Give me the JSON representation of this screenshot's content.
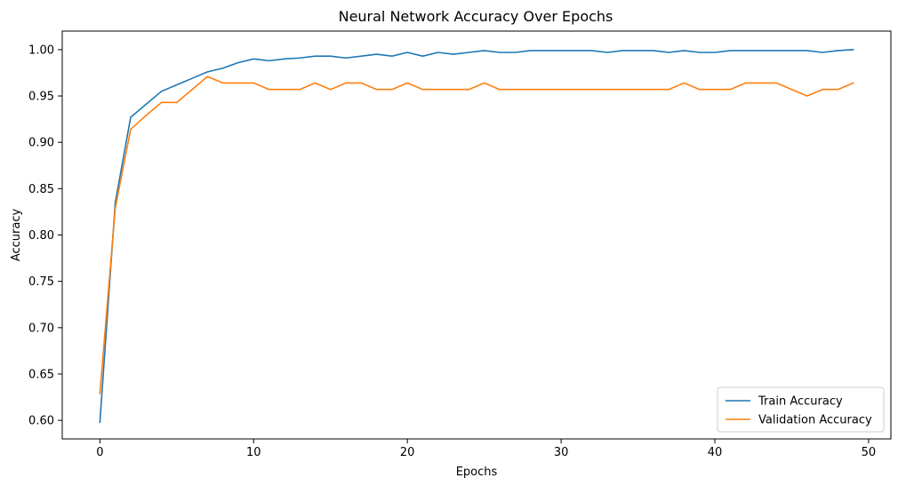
{
  "chart_data": {
    "type": "line",
    "title": "Neural Network Accuracy Over Epochs",
    "xlabel": "Epochs",
    "ylabel": "Accuracy",
    "xlim": [
      -2.45,
      51.45
    ],
    "ylim": [
      0.58,
      1.02
    ],
    "xticks": [
      0,
      10,
      20,
      30,
      40,
      50
    ],
    "yticks": [
      0.6,
      0.65,
      0.7,
      0.75,
      0.8,
      0.85,
      0.9,
      0.95,
      1.0
    ],
    "ytick_labels": [
      "0.60",
      "0.65",
      "0.70",
      "0.75",
      "0.80",
      "0.85",
      "0.90",
      "0.95",
      "1.00"
    ],
    "xtick_labels": [
      "0",
      "10",
      "20",
      "30",
      "40",
      "50"
    ],
    "grid": false,
    "legend_position": "lower-right",
    "x": [
      0,
      1,
      2,
      3,
      4,
      5,
      6,
      7,
      8,
      9,
      10,
      11,
      12,
      13,
      14,
      15,
      16,
      17,
      18,
      19,
      20,
      21,
      22,
      23,
      24,
      25,
      26,
      27,
      28,
      29,
      30,
      31,
      32,
      33,
      34,
      35,
      36,
      37,
      38,
      39,
      40,
      41,
      42,
      43,
      44,
      45,
      46,
      47,
      48,
      49
    ],
    "series": [
      {
        "name": "Train Accuracy",
        "color": "#1f77b4",
        "values": [
          0.598,
          0.835,
          0.927,
          0.941,
          0.955,
          0.962,
          0.969,
          0.976,
          0.98,
          0.986,
          0.99,
          0.988,
          0.99,
          0.991,
          0.993,
          0.993,
          0.991,
          0.993,
          0.995,
          0.993,
          0.997,
          0.993,
          0.997,
          0.995,
          0.997,
          0.999,
          0.997,
          0.997,
          0.999,
          0.999,
          0.999,
          0.999,
          0.999,
          0.997,
          0.999,
          0.999,
          0.999,
          0.997,
          0.999,
          0.997,
          0.997,
          0.999,
          0.999,
          0.999,
          0.999,
          0.999,
          0.999,
          0.997,
          0.999,
          1.0
        ]
      },
      {
        "name": "Validation Accuracy",
        "color": "#ff7f0e",
        "values": [
          0.629,
          0.829,
          0.914,
          0.929,
          0.943,
          0.943,
          0.957,
          0.971,
          0.964,
          0.964,
          0.964,
          0.957,
          0.957,
          0.957,
          0.964,
          0.957,
          0.964,
          0.964,
          0.957,
          0.957,
          0.964,
          0.957,
          0.957,
          0.957,
          0.957,
          0.964,
          0.957,
          0.957,
          0.957,
          0.957,
          0.957,
          0.957,
          0.957,
          0.957,
          0.957,
          0.957,
          0.957,
          0.957,
          0.964,
          0.957,
          0.957,
          0.957,
          0.964,
          0.964,
          0.964,
          0.957,
          0.95,
          0.957,
          0.957,
          0.964
        ]
      }
    ]
  }
}
